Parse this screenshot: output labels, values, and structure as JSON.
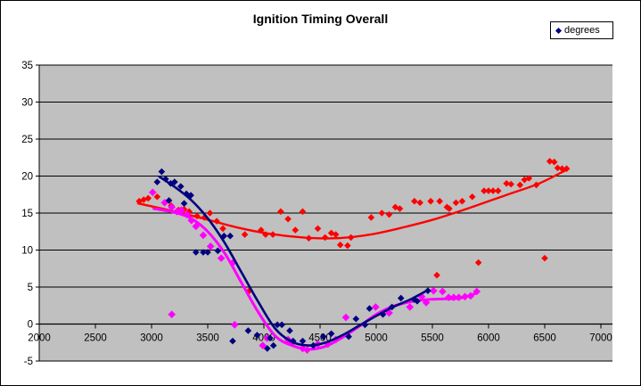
{
  "window": {
    "title": "Ignition Timing Overall"
  },
  "chart_data": {
    "type": "scatter",
    "title": "Ignition Timing Overall",
    "legend": {
      "position": "top-right",
      "entries": [
        {
          "label": "degrees",
          "marker": "diamond",
          "marker_color": "#000080"
        }
      ]
    },
    "x_axis": {
      "min": 2000,
      "max": 7100,
      "tick_step": 500,
      "ticks": [
        "2000",
        "2500",
        "3000",
        "3500",
        "4000",
        "4500",
        "5000",
        "5500",
        "6000",
        "6500",
        "7000"
      ]
    },
    "y_axis": {
      "min": -5,
      "max": 35,
      "tick_step": 5,
      "ticks": [
        "35",
        "30",
        "25",
        "20",
        "15",
        "10",
        "5",
        "0",
        "-5"
      ]
    },
    "grid": "horizontal",
    "colors": {
      "plot_bg": "#C0C0C0",
      "gridline": "#000000",
      "axis": "#000000"
    },
    "series": [
      {
        "name": "red",
        "color": "#FF0000",
        "marker": "diamond",
        "marker_size": 3.8,
        "trend_width": 2.4,
        "points": [
          [
            2890,
            16.6
          ],
          [
            2930,
            16.8
          ],
          [
            2970,
            17.0
          ],
          [
            3050,
            17.2
          ],
          [
            3175,
            16.0
          ],
          [
            3240,
            15.4
          ],
          [
            3290,
            15.5
          ],
          [
            3335,
            15.2
          ],
          [
            3405,
            14.6
          ],
          [
            3470,
            14.4
          ],
          [
            3520,
            15.0
          ],
          [
            3580,
            13.9
          ],
          [
            3635,
            12.9
          ],
          [
            3830,
            12.1
          ],
          [
            3870,
            4.5
          ],
          [
            3975,
            12.7
          ],
          [
            4015,
            12.1
          ],
          [
            4080,
            12.1
          ],
          [
            4150,
            15.2
          ],
          [
            4215,
            14.2
          ],
          [
            4280,
            12.7
          ],
          [
            4345,
            15.2
          ],
          [
            4400,
            11.6
          ],
          [
            4480,
            12.9
          ],
          [
            4545,
            11.7
          ],
          [
            4600,
            12.3
          ],
          [
            4640,
            12.1
          ],
          [
            4680,
            10.7
          ],
          [
            4745,
            10.6
          ],
          [
            4775,
            11.7
          ],
          [
            4955,
            14.4
          ],
          [
            5050,
            15.0
          ],
          [
            5115,
            14.8
          ],
          [
            5170,
            15.8
          ],
          [
            5210,
            15.6
          ],
          [
            5340,
            16.6
          ],
          [
            5390,
            16.4
          ],
          [
            5485,
            16.6
          ],
          [
            5540,
            6.6
          ],
          [
            5565,
            16.6
          ],
          [
            5630,
            15.8
          ],
          [
            5650,
            15.6
          ],
          [
            5710,
            16.4
          ],
          [
            5765,
            16.6
          ],
          [
            5855,
            17.2
          ],
          [
            5910,
            8.3
          ],
          [
            5960,
            18.0
          ],
          [
            6000,
            18.0
          ],
          [
            6040,
            18.0
          ],
          [
            6085,
            18.0
          ],
          [
            6160,
            19.0
          ],
          [
            6200,
            18.9
          ],
          [
            6280,
            18.8
          ],
          [
            6320,
            19.5
          ],
          [
            6360,
            19.7
          ],
          [
            6425,
            18.8
          ],
          [
            6500,
            8.9
          ],
          [
            6545,
            22.0
          ],
          [
            6585,
            21.9
          ],
          [
            6615,
            21.1
          ],
          [
            6655,
            21.0
          ],
          [
            6695,
            21.0
          ]
        ],
        "trend": [
          [
            2880,
            16.3
          ],
          [
            3150,
            15.4
          ],
          [
            3450,
            14.3
          ],
          [
            3750,
            13.1
          ],
          [
            4050,
            12.2
          ],
          [
            4350,
            11.7
          ],
          [
            4650,
            11.6
          ],
          [
            4950,
            12.1
          ],
          [
            5250,
            13.1
          ],
          [
            5550,
            14.3
          ],
          [
            5850,
            15.8
          ],
          [
            6150,
            17.4
          ],
          [
            6450,
            19.0
          ],
          [
            6700,
            20.9
          ]
        ]
      },
      {
        "name": "magenta",
        "color": "#FF00FF",
        "marker": "diamond",
        "marker_size": 4.3,
        "trend_width": 3,
        "points": [
          [
            3010,
            17.8
          ],
          [
            3117,
            16.4
          ],
          [
            3180,
            15.8
          ],
          [
            3180,
            1.3
          ],
          [
            3225,
            15.2
          ],
          [
            3265,
            15.4
          ],
          [
            3315,
            14.8
          ],
          [
            3355,
            14.0
          ],
          [
            3395,
            13.2
          ],
          [
            3460,
            12.0
          ],
          [
            3525,
            10.5
          ],
          [
            3620,
            8.9
          ],
          [
            3725,
            8.3
          ],
          [
            3740,
            -0.1
          ],
          [
            3990,
            -2.9
          ],
          [
            4030,
            -1.9
          ],
          [
            4215,
            -2.1
          ],
          [
            4255,
            -2.5
          ],
          [
            4345,
            -3.3
          ],
          [
            4385,
            -3.5
          ],
          [
            4480,
            -2.7
          ],
          [
            4570,
            -2.7
          ],
          [
            4640,
            -2.1
          ],
          [
            4730,
            0.9
          ],
          [
            4995,
            2.3
          ],
          [
            5115,
            1.5
          ],
          [
            5300,
            2.3
          ],
          [
            5405,
            3.7
          ],
          [
            5445,
            2.9
          ],
          [
            5510,
            4.5
          ],
          [
            5590,
            4.4
          ],
          [
            5645,
            3.6
          ],
          [
            5690,
            3.6
          ],
          [
            5735,
            3.6
          ],
          [
            5790,
            3.7
          ],
          [
            5840,
            3.8
          ],
          [
            5895,
            4.4
          ]
        ],
        "trend": [
          [
            3020,
            15.6
          ],
          [
            3200,
            15.1
          ],
          [
            3350,
            14.3
          ],
          [
            3500,
            12.5
          ],
          [
            3650,
            9.6
          ],
          [
            3800,
            5.6
          ],
          [
            3950,
            1.6
          ],
          [
            4100,
            -1.6
          ],
          [
            4250,
            -2.9
          ],
          [
            4400,
            -3.4
          ],
          [
            4550,
            -3.0
          ],
          [
            4700,
            -1.8
          ],
          [
            4850,
            -0.3
          ],
          [
            5000,
            1.3
          ],
          [
            5150,
            2.4
          ],
          [
            5300,
            3.0
          ],
          [
            5450,
            3.3
          ],
          [
            5600,
            3.4
          ],
          [
            5750,
            3.5
          ],
          [
            5895,
            4.2
          ]
        ]
      },
      {
        "name": "degrees",
        "color": "#000080",
        "marker": "diamond",
        "marker_size": 3.8,
        "trend_width": 2.6,
        "points": [
          [
            3050,
            19.2
          ],
          [
            3090,
            20.6
          ],
          [
            3125,
            19.6
          ],
          [
            3155,
            16.7
          ],
          [
            3170,
            19.0
          ],
          [
            3205,
            19.2
          ],
          [
            3260,
            18.6
          ],
          [
            3290,
            16.3
          ],
          [
            3310,
            17.6
          ],
          [
            3350,
            17.4
          ],
          [
            3395,
            9.7
          ],
          [
            3460,
            9.7
          ],
          [
            3500,
            9.7
          ],
          [
            3590,
            9.9
          ],
          [
            3645,
            11.9
          ],
          [
            3700,
            11.9
          ],
          [
            3722,
            -2.3
          ],
          [
            3860,
            -0.9
          ],
          [
            3940,
            -1.5
          ],
          [
            4030,
            -3.3
          ],
          [
            4055,
            -1.9
          ],
          [
            4085,
            -2.9
          ],
          [
            4120,
            -0.1
          ],
          [
            4160,
            -0.1
          ],
          [
            4230,
            -0.9
          ],
          [
            4260,
            -2.3
          ],
          [
            4345,
            -2.3
          ],
          [
            4440,
            -2.9
          ],
          [
            4530,
            -1.7
          ],
          [
            4600,
            -1.3
          ],
          [
            4755,
            -1.7
          ],
          [
            4820,
            0.7
          ],
          [
            4900,
            -0.1
          ],
          [
            4940,
            2.1
          ],
          [
            5060,
            1.3
          ],
          [
            5140,
            2.3
          ],
          [
            5220,
            3.5
          ],
          [
            5340,
            3.3
          ],
          [
            5365,
            3.1
          ],
          [
            5460,
            4.5
          ]
        ],
        "trend": [
          [
            3070,
            19.9
          ],
          [
            3200,
            18.6
          ],
          [
            3350,
            16.8
          ],
          [
            3500,
            14.3
          ],
          [
            3650,
            11.0
          ],
          [
            3800,
            7.0
          ],
          [
            3950,
            3.0
          ],
          [
            4100,
            -0.6
          ],
          [
            4250,
            -2.4
          ],
          [
            4400,
            -2.9
          ],
          [
            4550,
            -2.5
          ],
          [
            4700,
            -1.5
          ],
          [
            4850,
            -0.2
          ],
          [
            5000,
            1.1
          ],
          [
            5150,
            2.3
          ],
          [
            5300,
            3.3
          ],
          [
            5460,
            4.6
          ]
        ]
      }
    ]
  }
}
